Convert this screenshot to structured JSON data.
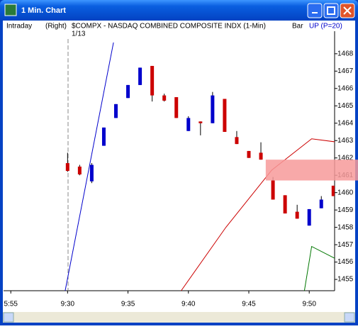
{
  "window": {
    "title": "1 Min. Chart"
  },
  "header": {
    "mode": "Intraday",
    "side": "(Right)",
    "symbol": "$COMPX - NASDAQ COMBINED COMPOSITE INDX (1-Min)",
    "style": "Bar",
    "indicator": "UP (P=20)",
    "date": "1/13"
  },
  "chart_data": {
    "type": "candlestick",
    "x": [
      570,
      571,
      572,
      573,
      574,
      575,
      576,
      577,
      578,
      579,
      580,
      581,
      582,
      583,
      584,
      585,
      586,
      587,
      588,
      589,
      590,
      591,
      592
    ],
    "open": [
      1461.7,
      1461.5,
      1460.65,
      1462.7,
      1464.3,
      1465.45,
      1466.2,
      1467.3,
      1465.6,
      1465.5,
      1463.55,
      1464.1,
      1464.0,
      1465.4,
      1463.2,
      1462.4,
      1462.3,
      1460.7,
      1459.85,
      1458.9,
      1458.1,
      1459.1,
      1460.4
    ],
    "high": [
      1462.3,
      1461.6,
      1461.7,
      1463.75,
      1465.1,
      1466.2,
      1467.2,
      1467.3,
      1465.7,
      1465.5,
      1464.4,
      1464.1,
      1465.8,
      1465.4,
      1463.55,
      1462.4,
      1462.9,
      1460.9,
      1459.85,
      1459.3,
      1459.05,
      1459.8,
      1460.4
    ],
    "low": [
      1461.2,
      1461.0,
      1460.55,
      1462.7,
      1464.3,
      1465.45,
      1466.2,
      1465.25,
      1465.25,
      1464.3,
      1463.55,
      1463.3,
      1464.0,
      1463.5,
      1462.8,
      1462.0,
      1461.9,
      1459.6,
      1458.8,
      1458.5,
      1458.1,
      1459.1,
      1459.8
    ],
    "close": [
      1461.25,
      1461.05,
      1461.6,
      1463.75,
      1465.1,
      1466.2,
      1467.2,
      1465.6,
      1465.3,
      1464.3,
      1464.3,
      1464.0,
      1465.6,
      1463.5,
      1462.8,
      1462.0,
      1461.9,
      1459.6,
      1458.8,
      1458.5,
      1459.05,
      1459.6,
      1459.8
    ],
    "up_color": "#0000cc",
    "down_color": "#cc0000",
    "lines": [
      {
        "color": "#0000cc",
        "x": [
          569.8,
          573.8
        ],
        "values": [
          1454.35,
          1468.65
        ]
      },
      {
        "color": "#cc0000",
        "x": [
          579.4,
          583.1,
          586.9,
          590.2,
          593
        ],
        "values": [
          1454.35,
          1458.0,
          1461.3,
          1463.1,
          1462.85
        ]
      },
      {
        "color": "#007700",
        "x": [
          589.6,
          590.2,
          593
        ],
        "values": [
          1454.35,
          1456.9,
          1455.9
        ]
      }
    ],
    "band": {
      "x": 586.4,
      "range": [
        1460.7,
        1461.9
      ],
      "color": "#f79a9a"
    },
    "xlim": [
      564.7,
      592.1
    ],
    "ylim": [
      1454.35,
      1469.3
    ],
    "xticks": [
      {
        "value": 565.3,
        "label": "5:55"
      },
      {
        "value": 570,
        "label": "9:30"
      },
      {
        "value": 575,
        "label": "9:35"
      },
      {
        "value": 580,
        "label": "9:40"
      },
      {
        "value": 585,
        "label": "9:45"
      },
      {
        "value": 590,
        "label": "9:50"
      }
    ],
    "yticks": [
      1455,
      1456,
      1457,
      1458,
      1459,
      1460,
      1461,
      1462,
      1463,
      1464,
      1465,
      1466,
      1467,
      1468
    ]
  }
}
